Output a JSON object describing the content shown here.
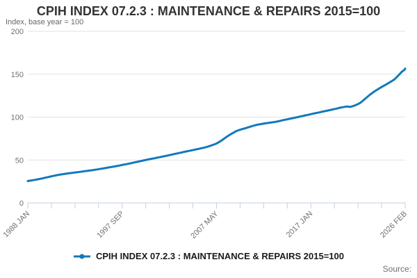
{
  "chart_data": {
    "type": "line",
    "title": "CPIH INDEX 07.2.3 : MAINTENANCE & REPAIRS 2015=100",
    "subtitle": "Index, base year = 100",
    "source_label": "Source:",
    "xlim": [
      1988.0,
      2026.0833
    ],
    "ylim": [
      0,
      200
    ],
    "y_ticks": [
      0,
      50,
      100,
      150,
      200
    ],
    "x_axis": {
      "tick_count": 17,
      "label_every": 4,
      "labels": [
        "1988 JAN",
        "1997 SEP",
        "2007 MAY",
        "2017 JAN",
        "2026 FEB"
      ]
    },
    "grid": "horizontal",
    "legend_position": "bottom-center",
    "colors": {
      "line": "#1278bd",
      "grid": "#e2e2e2",
      "axis": "#c3cfdf",
      "tick_label": "#707070",
      "title": "#333333",
      "subtitle": "#666666",
      "legend_text": "#1a1a1a",
      "source": "#707070"
    },
    "series": [
      {
        "name": "CPIH INDEX 07.2.3 : MAINTENANCE & REPAIRS 2015=100",
        "color": "#1278bd",
        "points": [
          [
            1988.0,
            25.5
          ],
          [
            1988.25,
            26.0
          ],
          [
            1988.5,
            26.5
          ],
          [
            1988.75,
            27.0
          ],
          [
            1989.0,
            27.5
          ],
          [
            1989.25,
            28.1
          ],
          [
            1989.5,
            28.7
          ],
          [
            1989.75,
            29.4
          ],
          [
            1990.0,
            30.0
          ],
          [
            1990.25,
            30.7
          ],
          [
            1990.5,
            31.3
          ],
          [
            1990.75,
            31.9
          ],
          [
            1991.0,
            32.5
          ],
          [
            1991.25,
            33.0
          ],
          [
            1991.5,
            33.4
          ],
          [
            1991.75,
            33.9
          ],
          [
            1992.0,
            34.3
          ],
          [
            1992.25,
            34.7
          ],
          [
            1992.5,
            35.1
          ],
          [
            1992.75,
            35.5
          ],
          [
            1993.0,
            35.8
          ],
          [
            1993.25,
            36.2
          ],
          [
            1993.5,
            36.6
          ],
          [
            1993.75,
            37.0
          ],
          [
            1994.0,
            37.3
          ],
          [
            1994.25,
            37.7
          ],
          [
            1994.5,
            38.1
          ],
          [
            1994.75,
            38.6
          ],
          [
            1995.0,
            39.0
          ],
          [
            1995.25,
            39.5
          ],
          [
            1995.5,
            40.0
          ],
          [
            1995.75,
            40.5
          ],
          [
            1996.0,
            41.0
          ],
          [
            1996.25,
            41.5
          ],
          [
            1996.5,
            42.0
          ],
          [
            1996.75,
            42.5
          ],
          [
            1997.0,
            43.0
          ],
          [
            1997.25,
            43.6
          ],
          [
            1997.5,
            44.2
          ],
          [
            1997.75,
            44.8
          ],
          [
            1998.0,
            45.3
          ],
          [
            1998.25,
            45.9
          ],
          [
            1998.5,
            46.5
          ],
          [
            1998.75,
            47.2
          ],
          [
            1999.0,
            47.8
          ],
          [
            1999.25,
            48.4
          ],
          [
            1999.5,
            49.0
          ],
          [
            1999.75,
            49.7
          ],
          [
            2000.0,
            50.3
          ],
          [
            2000.25,
            50.9
          ],
          [
            2000.5,
            51.5
          ],
          [
            2000.75,
            52.0
          ],
          [
            2001.0,
            52.6
          ],
          [
            2001.25,
            53.2
          ],
          [
            2001.5,
            53.8
          ],
          [
            2001.75,
            54.4
          ],
          [
            2002.0,
            55.0
          ],
          [
            2002.25,
            55.6
          ],
          [
            2002.5,
            56.2
          ],
          [
            2002.75,
            56.9
          ],
          [
            2003.0,
            57.5
          ],
          [
            2003.25,
            58.1
          ],
          [
            2003.5,
            58.7
          ],
          [
            2003.75,
            59.4
          ],
          [
            2004.0,
            60.0
          ],
          [
            2004.25,
            60.6
          ],
          [
            2004.5,
            61.2
          ],
          [
            2004.75,
            61.8
          ],
          [
            2005.0,
            62.4
          ],
          [
            2005.25,
            63.0
          ],
          [
            2005.5,
            63.7
          ],
          [
            2005.75,
            64.3
          ],
          [
            2006.0,
            65.0
          ],
          [
            2006.25,
            65.9
          ],
          [
            2006.5,
            66.9
          ],
          [
            2006.75,
            67.9
          ],
          [
            2007.0,
            69.0
          ],
          [
            2007.25,
            70.6
          ],
          [
            2007.5,
            72.4
          ],
          [
            2007.75,
            74.4
          ],
          [
            2008.0,
            76.5
          ],
          [
            2008.25,
            78.4
          ],
          [
            2008.5,
            80.2
          ],
          [
            2008.75,
            81.9
          ],
          [
            2009.0,
            83.5
          ],
          [
            2009.25,
            84.6
          ],
          [
            2009.5,
            85.6
          ],
          [
            2009.75,
            86.4
          ],
          [
            2010.0,
            87.2
          ],
          [
            2010.25,
            88.1
          ],
          [
            2010.5,
            89.0
          ],
          [
            2010.75,
            89.9
          ],
          [
            2011.0,
            90.7
          ],
          [
            2011.25,
            91.3
          ],
          [
            2011.5,
            91.8
          ],
          [
            2011.75,
            92.3
          ],
          [
            2012.0,
            92.8
          ],
          [
            2012.25,
            93.2
          ],
          [
            2012.5,
            93.6
          ],
          [
            2012.75,
            94.0
          ],
          [
            2013.0,
            94.5
          ],
          [
            2013.25,
            95.1
          ],
          [
            2013.5,
            95.7
          ],
          [
            2013.75,
            96.4
          ],
          [
            2014.0,
            97.0
          ],
          [
            2014.25,
            97.6
          ],
          [
            2014.5,
            98.2
          ],
          [
            2014.75,
            98.8
          ],
          [
            2015.0,
            99.4
          ],
          [
            2015.25,
            100.0
          ],
          [
            2015.5,
            100.7
          ],
          [
            2015.75,
            101.3
          ],
          [
            2016.0,
            102.0
          ],
          [
            2016.25,
            102.6
          ],
          [
            2016.5,
            103.2
          ],
          [
            2016.75,
            103.9
          ],
          [
            2017.0,
            104.5
          ],
          [
            2017.25,
            105.1
          ],
          [
            2017.5,
            105.7
          ],
          [
            2017.75,
            106.4
          ],
          [
            2018.0,
            107.0
          ],
          [
            2018.25,
            107.6
          ],
          [
            2018.5,
            108.2
          ],
          [
            2018.75,
            108.9
          ],
          [
            2019.0,
            109.5
          ],
          [
            2019.25,
            110.2
          ],
          [
            2019.5,
            110.9
          ],
          [
            2019.75,
            111.5
          ],
          [
            2020.0,
            112.0
          ],
          [
            2020.25,
            112.4
          ],
          [
            2020.5,
            111.8
          ],
          [
            2020.75,
            112.6
          ],
          [
            2021.0,
            113.5
          ],
          [
            2021.25,
            114.8
          ],
          [
            2021.5,
            116.3
          ],
          [
            2021.75,
            118.4
          ],
          [
            2022.0,
            121.0
          ],
          [
            2022.25,
            123.4
          ],
          [
            2022.5,
            125.8
          ],
          [
            2022.75,
            128.0
          ],
          [
            2023.0,
            130.0
          ],
          [
            2023.25,
            131.9
          ],
          [
            2023.5,
            133.7
          ],
          [
            2023.75,
            135.4
          ],
          [
            2024.0,
            137.0
          ],
          [
            2024.25,
            138.6
          ],
          [
            2024.5,
            140.3
          ],
          [
            2024.75,
            142.1
          ],
          [
            2025.0,
            144.0
          ],
          [
            2025.25,
            146.8
          ],
          [
            2025.5,
            149.8
          ],
          [
            2025.75,
            152.9
          ],
          [
            2026.0,
            155.0
          ],
          [
            2026.0833,
            156.5
          ]
        ]
      }
    ]
  }
}
